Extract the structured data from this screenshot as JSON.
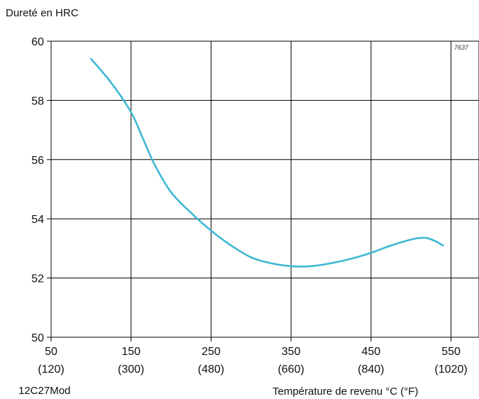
{
  "chart_data": {
    "type": "line",
    "ylabel": "Dureté en HRC",
    "xlabel": "Température de revenu °C  (°F)",
    "material": "12C27Mod",
    "figure_code": "7637",
    "xlim": [
      50,
      585
    ],
    "ylim": [
      50,
      60
    ],
    "x_ticks": [
      {
        "value": 50,
        "label": "50",
        "sublabel": "(120)"
      },
      {
        "value": 150,
        "label": "150",
        "sublabel": "(300)"
      },
      {
        "value": 250,
        "label": "250",
        "sublabel": "(480)"
      },
      {
        "value": 350,
        "label": "350",
        "sublabel": "(660)"
      },
      {
        "value": 450,
        "label": "450",
        "sublabel": "(840)"
      },
      {
        "value": 550,
        "label": "550",
        "sublabel": "(1020)"
      }
    ],
    "y_ticks": [
      {
        "value": 50,
        "label": "50"
      },
      {
        "value": 52,
        "label": "52"
      },
      {
        "value": 54,
        "label": "54"
      },
      {
        "value": 56,
        "label": "56"
      },
      {
        "value": 58,
        "label": "58"
      },
      {
        "value": 60,
        "label": "60"
      }
    ],
    "grid": true,
    "line_color": "#3fb8d5",
    "series": [
      {
        "name": "",
        "x": [
          100,
          125,
          150,
          165,
          180,
          200,
          225,
          250,
          275,
          300,
          325,
          350,
          375,
          400,
          425,
          450,
          475,
          500,
          510,
          520,
          530,
          540
        ],
        "y": [
          59.4,
          58.6,
          57.6,
          56.7,
          55.8,
          54.9,
          54.2,
          53.6,
          53.1,
          52.7,
          52.5,
          52.4,
          52.4,
          52.5,
          52.65,
          52.85,
          53.1,
          53.3,
          53.35,
          53.35,
          53.25,
          53.1
        ]
      }
    ]
  }
}
